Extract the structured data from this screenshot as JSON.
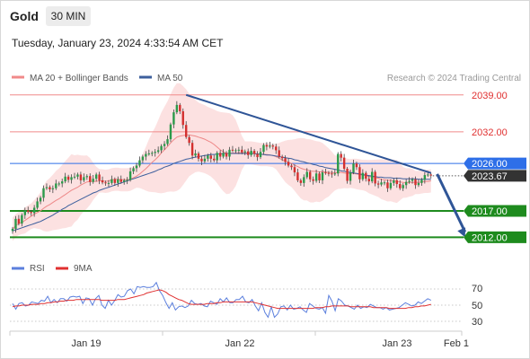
{
  "header": {
    "symbol": "Gold",
    "timeframe": "30 MIN",
    "timestamp": "Tuesday, January 23, 2024 4:33:54 AM CET"
  },
  "colors": {
    "bb_fill": "#fcdcdc",
    "ma20": "#ee8888",
    "ma50": "#3d5f9d",
    "candle_up": "#2b9a4a",
    "candle_down": "#d3302f",
    "resistance": "#f08a8a",
    "support": "#1e8b1e",
    "pivot": "#2e6fe8",
    "trendline": "#2f5597",
    "rsi": "#5b7fdd",
    "rsi_ma": "#e03030"
  },
  "chart_data": [
    {
      "type": "candlestick",
      "title": "",
      "legend": [
        {
          "name": "MA 20 + Bollinger Bands",
          "color": "#f08a8a"
        },
        {
          "name": "MA 50",
          "color": "#3d5f9d"
        }
      ],
      "legend_position": "top-left",
      "source": "Research © 2024 Trading Central",
      "x_ticks": [
        "Jan 19",
        "Jan 22",
        "Jan 23",
        "Feb 1"
      ],
      "ylim": [
        2009,
        2041
      ],
      "series": {
        "close": [
          2013.6,
          2015.5,
          2014.6,
          2016.2,
          2017.1,
          2016.8,
          2016.6,
          2017.6,
          2018.8,
          2019.5,
          2021.3,
          2021.5,
          2021.1,
          2021.3,
          2022.2,
          2022.2,
          2022.6,
          2023.5,
          2022.9,
          2023.4,
          2023.5,
          2023.9,
          2022.8,
          2023.4,
          2023.6,
          2022.5,
          2023.1,
          2023.9,
          2022.8,
          2022.4,
          2022.3,
          2022.3,
          2023.0,
          2022.3,
          2023.0,
          2022.5,
          2022.8,
          2022.9,
          2024.5,
          2025.1,
          2025.6,
          2026.6,
          2027.3,
          2027.8,
          2027.9,
          2028.0,
          2028.2,
          2028.5,
          2029.3,
          2029.7,
          2030.6,
          2033.4,
          2035.7,
          2037.1,
          2035.9,
          2033.3,
          2031.0,
          2029.9,
          2027.5,
          2027.9,
          2026.9,
          2026.4,
          2026.9,
          2027.5,
          2026.9,
          2026.6,
          2028.0,
          2027.3,
          2028.0,
          2027.3,
          2028.6,
          2028.5,
          2028.5,
          2028.6,
          2028.1,
          2028.3,
          2027.6,
          2028.4,
          2027.8,
          2027.2,
          2028.2,
          2029.5,
          2029.2,
          2029.4,
          2029.2,
          2028.5,
          2027.3,
          2027.0,
          2026.3,
          2025.6,
          2025.3,
          2024.3,
          2022.8,
          2022.3,
          2023.4,
          2024.4,
          2023.0,
          2022.7,
          2024.1,
          2022.8,
          2024.3,
          2024.2,
          2024.1,
          2024.0,
          2024.1,
          2027.8,
          2027.1,
          2025.0,
          2022.7,
          2024.3,
          2026.0,
          2025.3,
          2023.0,
          2024.2,
          2023.1,
          2022.6,
          2024.4,
          2022.2,
          2022.0,
          2022.4,
          2022.4,
          2021.3,
          2022.3,
          2022.8,
          2022.1,
          2021.3,
          2021.9,
          2022.5,
          2022.7,
          2023.0,
          2021.9,
          2022.3,
          2022.9,
          2023.8,
          2023.9,
          2023.7
        ],
        "ma20": [
          2013.5,
          2014.2,
          2014.6,
          2014.8,
          2015.2,
          2015.6,
          2016.0,
          2016.4,
          2016.7,
          2017.0,
          2017.5,
          2017.9,
          2018.2,
          2018.6,
          2019.0,
          2019.3,
          2019.7,
          2020.1,
          2020.5,
          2020.9,
          2021.2,
          2021.5,
          2021.9,
          2022.2,
          2022.5,
          2022.6,
          2022.6,
          2022.6,
          2022.7,
          2022.7,
          2022.6,
          2022.7,
          2022.9,
          2023.0,
          2023.0,
          2022.9,
          2022.9,
          2022.9,
          2023.0,
          2023.3,
          2023.6,
          2024.0,
          2024.5,
          2025.0,
          2025.6,
          2026.2,
          2026.7,
          2027.3,
          2028.0,
          2028.6,
          2029.2,
          2029.9,
          2030.5,
          2031.0,
          2031.2,
          2031.3,
          2031.4,
          2031.4,
          2031.3,
          2031.2,
          2031.0,
          2030.8,
          2030.6,
          2030.3,
          2030.0,
          2029.6,
          2029.1,
          2028.6,
          2028.2,
          2027.9,
          2027.9,
          2028.0,
          2028.0,
          2028.0,
          2028.0,
          2028.0,
          2028.0,
          2028.0,
          2027.9,
          2027.8,
          2027.7,
          2027.7,
          2027.7,
          2027.6,
          2027.5,
          2027.3,
          2027.0,
          2026.7,
          2026.4,
          2026.2,
          2026.0,
          2025.7,
          2025.4,
          2025.1,
          2024.9,
          2024.8,
          2024.6,
          2024.5,
          2024.5,
          2024.4,
          2024.4,
          2024.4,
          2024.3,
          2024.3,
          2024.2,
          2024.3,
          2024.3,
          2024.2,
          2024.1,
          2024.1,
          2024.1,
          2024.0,
          2023.9,
          2023.8,
          2023.7,
          2023.5,
          2023.4,
          2023.3,
          2023.2,
          2023.0,
          2022.9,
          2022.8,
          2022.8,
          2022.7,
          2022.6,
          2022.5,
          2022.4,
          2022.3,
          2022.4,
          2022.4,
          2022.4,
          2022.4,
          2022.5,
          2022.6,
          2022.6,
          2022.7
        ],
        "ma50": [
          2013.2,
          2013.4,
          2013.6,
          2013.8,
          2014.0,
          2014.2,
          2014.4,
          2014.6,
          2014.8,
          2015.0,
          2015.3,
          2015.6,
          2015.9,
          2016.2,
          2016.6,
          2016.9,
          2017.3,
          2017.6,
          2018.0,
          2018.3,
          2018.6,
          2018.9,
          2019.2,
          2019.5,
          2019.8,
          2020.1,
          2020.4,
          2020.6,
          2020.9,
          2021.1,
          2021.3,
          2021.5,
          2021.7,
          2021.9,
          2022.1,
          2022.3,
          2022.5,
          2022.7,
          2022.9,
          2023.1,
          2023.3,
          2023.5,
          2023.7,
          2023.9,
          2024.1,
          2024.3,
          2024.5,
          2024.8,
          2025.0,
          2025.3,
          2025.5,
          2025.7,
          2026.0,
          2026.2,
          2026.4,
          2026.6,
          2026.8,
          2026.9,
          2027.1,
          2027.2,
          2027.3,
          2027.4,
          2027.5,
          2027.6,
          2027.7,
          2027.7,
          2027.8,
          2027.8,
          2027.9,
          2027.9,
          2027.9,
          2027.9,
          2027.9,
          2027.9,
          2027.9,
          2027.9,
          2027.9,
          2027.9,
          2027.9,
          2027.8,
          2027.8,
          2027.7,
          2027.6,
          2027.6,
          2027.5,
          2027.4,
          2027.3,
          2027.2,
          2027.1,
          2027.0,
          2026.9,
          2026.7,
          2026.6,
          2026.4,
          2026.3,
          2026.1,
          2026.0,
          2025.8,
          2025.7,
          2025.5,
          2025.4,
          2025.2,
          2025.1,
          2025.0,
          2024.9,
          2024.8,
          2024.6,
          2024.5,
          2024.4,
          2024.3,
          2024.2,
          2024.1,
          2024.0,
          2023.9,
          2023.8,
          2023.7,
          2023.6,
          2023.5,
          2023.4,
          2023.4,
          2023.3,
          2023.3,
          2023.3,
          2023.2,
          2023.2,
          2023.2,
          2023.1,
          2023.1,
          2023.1,
          2023.1,
          2023.1,
          2023.0,
          2023.0,
          2023.0,
          2023.0,
          2023.0
        ]
      },
      "levels": [
        {
          "label": "2039.00",
          "value": 2039.0,
          "kind": "resistance"
        },
        {
          "label": "2032.00",
          "value": 2032.0,
          "kind": "resistance"
        },
        {
          "label": "2026.00",
          "value": 2026.0,
          "kind": "pivot"
        },
        {
          "label": "2023.67",
          "value": 2023.67,
          "kind": "last-price"
        },
        {
          "label": "2017.00",
          "value": 2017.0,
          "kind": "support"
        },
        {
          "label": "2012.00",
          "value": 2012.0,
          "kind": "support"
        }
      ],
      "trendline": {
        "from": {
          "bar": 56,
          "price": 2039.0
        },
        "to": {
          "bar": 135,
          "price": 2024.2
        }
      },
      "forecast_arrow": {
        "from_bar": 137,
        "from_price": 2024.0,
        "to_bar": 146,
        "to_price": 2012.0
      }
    },
    {
      "type": "line",
      "title": "",
      "legend": [
        {
          "name": "RSI",
          "color": "#5b7fdd"
        },
        {
          "name": "9MA",
          "color": "#e03030"
        }
      ],
      "legend_position": "top-left",
      "y_ticks": [
        30,
        50,
        70
      ],
      "ylim": [
        20,
        80
      ],
      "series": [
        {
          "name": "RSI",
          "values": [
            52,
            45,
            52,
            53,
            49,
            50,
            54,
            53,
            52,
            56,
            55,
            61,
            53,
            57,
            53,
            58,
            58,
            55,
            60,
            61,
            60,
            61,
            52,
            59,
            58,
            50,
            58,
            62,
            50,
            46,
            56,
            50,
            56,
            63,
            60,
            61,
            68,
            70,
            64,
            73,
            72,
            73,
            72,
            72,
            73,
            78,
            68,
            62,
            53,
            46,
            53,
            44,
            48,
            49,
            47,
            49,
            56,
            52,
            51,
            52,
            49,
            48,
            55,
            53,
            51,
            58,
            54,
            59,
            53,
            53,
            57,
            57,
            61,
            54,
            53,
            57,
            49,
            43,
            53,
            41,
            35,
            48,
            35,
            39,
            48,
            49,
            44,
            50,
            45,
            46,
            48,
            44,
            41,
            52,
            49,
            46,
            45,
            47,
            40,
            62,
            55,
            43,
            58,
            55,
            50,
            49,
            47,
            45,
            50,
            46,
            48,
            47,
            51,
            49,
            47,
            47,
            45,
            47,
            44,
            45,
            46,
            47,
            50,
            53,
            51,
            49,
            50,
            54,
            52,
            55,
            58,
            56
          ]
        },
        {
          "name": "9MA",
          "values": [
            48,
            49,
            49,
            50,
            50,
            50,
            51,
            51,
            51,
            52,
            52,
            53,
            53,
            54,
            54,
            55,
            55,
            56,
            56,
            56,
            57,
            57,
            57,
            57,
            57,
            57,
            57,
            57,
            56,
            56,
            56,
            56,
            56,
            57,
            57,
            57,
            58,
            59,
            60,
            61,
            62,
            63,
            65,
            66,
            67,
            68,
            69,
            68,
            66,
            63,
            61,
            59,
            57,
            56,
            54,
            52,
            51,
            51,
            51,
            51,
            51,
            52,
            52,
            52,
            53,
            53,
            54,
            54,
            54,
            54,
            54,
            54,
            54,
            54,
            54,
            54,
            53,
            52,
            51,
            50,
            49,
            48,
            47,
            46,
            46,
            46,
            46,
            46,
            46,
            46,
            46,
            46,
            46,
            46,
            46,
            47,
            47,
            47,
            48,
            48,
            49,
            49,
            49,
            49,
            49,
            49,
            48,
            48,
            48,
            48,
            48,
            48,
            48,
            47,
            47,
            47,
            47,
            47,
            46,
            46,
            46,
            46,
            46,
            46,
            47,
            47,
            48,
            48,
            49,
            49,
            50,
            51
          ]
        }
      ]
    }
  ],
  "x_axis": {
    "ticks": [
      "Jan 19",
      "Jan 22",
      "Jan 23",
      "Feb 1"
    ]
  },
  "rsi_axis": {
    "ticks": [
      "70",
      "50",
      "30"
    ]
  }
}
